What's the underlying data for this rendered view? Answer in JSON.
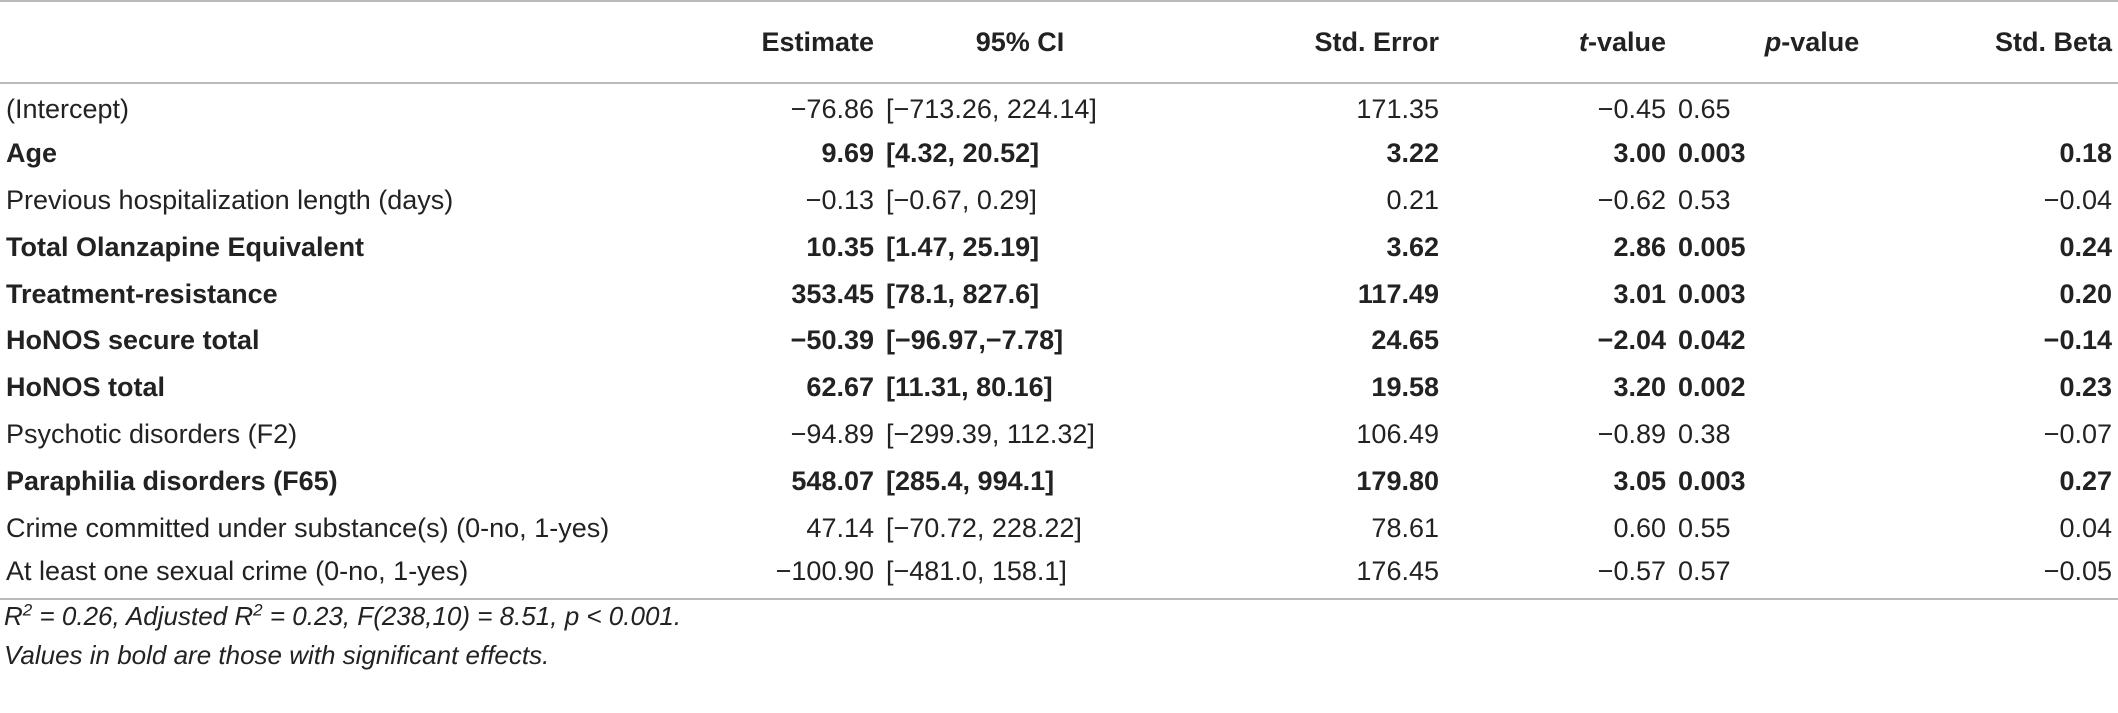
{
  "table": {
    "headers": {
      "variable": "",
      "estimate": "Estimate",
      "ci": "95% CI",
      "std_error": "Std. Error",
      "t_italic": "t",
      "t_suffix": "-value",
      "p_italic": "p",
      "p_suffix": "-value",
      "std_beta": "Std. Beta"
    },
    "rows": [
      {
        "variable": "(Intercept)",
        "estimate": "−76.86",
        "ci": "[−713.26, 224.14]",
        "std_error": "171.35",
        "t_value": "−0.45",
        "p_value": "0.65",
        "std_beta": "",
        "significant": false
      },
      {
        "variable": "Age",
        "estimate": "9.69",
        "ci": "[4.32, 20.52]",
        "std_error": "3.22",
        "t_value": "3.00",
        "p_value": "0.003",
        "std_beta": "0.18",
        "significant": true
      },
      {
        "variable": "Previous hospitalization length (days)",
        "estimate": "−0.13",
        "ci": "[−0.67, 0.29]",
        "std_error": "0.21",
        "t_value": "−0.62",
        "p_value": "0.53",
        "std_beta": "−0.04",
        "significant": false
      },
      {
        "variable": "Total Olanzapine Equivalent",
        "estimate": "10.35",
        "ci": "[1.47, 25.19]",
        "std_error": "3.62",
        "t_value": "2.86",
        "p_value": "0.005",
        "std_beta": "0.24",
        "significant": true
      },
      {
        "variable": "Treatment-resistance",
        "estimate": "353.45",
        "ci": "[78.1, 827.6]",
        "std_error": "117.49",
        "t_value": "3.01",
        "p_value": "0.003",
        "std_beta": "0.20",
        "significant": true
      },
      {
        "variable": "HoNOS secure total",
        "estimate": "−50.39",
        "ci": "[−96.97,−7.78]",
        "std_error": "24.65",
        "t_value": "−2.04",
        "p_value": "0.042",
        "std_beta": "−0.14",
        "significant": true
      },
      {
        "variable": "HoNOS total",
        "estimate": "62.67",
        "ci": "[11.31, 80.16]",
        "std_error": "19.58",
        "t_value": "3.20",
        "p_value": "0.002",
        "std_beta": "0.23",
        "significant": true
      },
      {
        "variable": "Psychotic disorders (F2)",
        "estimate": "−94.89",
        "ci": "[−299.39, 112.32]",
        "std_error": "106.49",
        "t_value": "−0.89",
        "p_value": "0.38",
        "std_beta": "−0.07",
        "significant": false
      },
      {
        "variable": "Paraphilia disorders (F65)",
        "estimate": "548.07",
        "ci": "[285.4, 994.1]",
        "std_error": "179.80",
        "t_value": "3.05",
        "p_value": "0.003",
        "std_beta": "0.27",
        "significant": true
      },
      {
        "variable": "Crime committed under substance(s) (0-no, 1-yes)",
        "estimate": "47.14",
        "ci": "[−70.72, 228.22]",
        "std_error": "78.61",
        "t_value": "0.60",
        "p_value": "0.55",
        "std_beta": "0.04",
        "significant": false
      },
      {
        "variable": "At least one sexual crime (0-no, 1-yes)",
        "estimate": "−100.90",
        "ci": "[−481.0, 158.1]",
        "std_error": "176.45",
        "t_value": "−0.57",
        "p_value": "0.57",
        "std_beta": "−0.05",
        "significant": false
      }
    ]
  },
  "notes": {
    "fit_r": "R",
    "fit_r2_sup": "2",
    "fit_mid": " = 0.26, Adjusted R",
    "fit_adj_sup": "2",
    "fit_rest": " = 0.23, F(238,10) = 8.51, p < 0.001.",
    "bold_note": "Values in bold are those with significant effects."
  }
}
